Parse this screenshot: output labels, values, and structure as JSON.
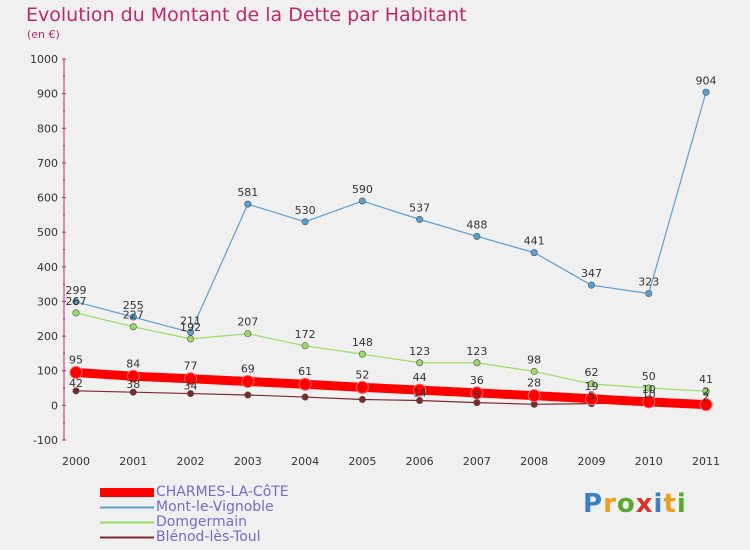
{
  "header": {
    "title": "Evolution du Montant de la Dette par Habitant",
    "subtitle": "(en €)"
  },
  "brand": {
    "letters": [
      "P",
      "r",
      "o",
      "x",
      "i",
      "t",
      "i"
    ]
  },
  "chart_data": {
    "type": "line",
    "x": [
      "2000",
      "2001",
      "2002",
      "2003",
      "2004",
      "2005",
      "2006",
      "2007",
      "2008",
      "2009",
      "2010",
      "2011"
    ],
    "ylim": [
      -100,
      1000
    ],
    "yticks": [
      "-100",
      "0",
      "100",
      "200",
      "300",
      "400",
      "500",
      "600",
      "700",
      "800",
      "900",
      "1000"
    ],
    "grid": false,
    "legend_position": "bottom-left",
    "series": [
      {
        "name": "CHARMES-LA-CôTE",
        "color": "#ff0000",
        "values": [
          95,
          84,
          77,
          69,
          61,
          52,
          44,
          36,
          28,
          19,
          10,
          2
        ],
        "labels": [
          "95",
          "84",
          "77",
          "69",
          "61",
          "52",
          "44",
          "36",
          "28",
          "19",
          "10",
          "2"
        ]
      },
      {
        "name": "Mont-le-Vignoble",
        "color": "#5a9fd4",
        "values": [
          299,
          255,
          211,
          581,
          530,
          590,
          537,
          488,
          441,
          347,
          323,
          904
        ],
        "labels": [
          "299",
          "255",
          "211",
          "581",
          "530",
          "590",
          "537",
          "488",
          "441",
          "347",
          "323",
          "904"
        ]
      },
      {
        "name": "Domgermain",
        "color": "#99dd66",
        "values": [
          267,
          227,
          192,
          207,
          172,
          148,
          123,
          123,
          98,
          62,
          50,
          41
        ],
        "labels": [
          "267",
          "227",
          "192",
          "207",
          "172",
          "148",
          "123",
          "123",
          "98",
          "62",
          "50",
          "41"
        ]
      },
      {
        "name": "Blénod-lès-Toul",
        "color": "#7a2a2a",
        "values": [
          42,
          38,
          34,
          30,
          24,
          17,
          14,
          8,
          3,
          5,
          10,
          2
        ],
        "labels": [
          "42",
          "38",
          "34",
          "",
          "",
          "",
          "14",
          "8",
          "",
          "5",
          "10",
          "2"
        ]
      }
    ]
  }
}
